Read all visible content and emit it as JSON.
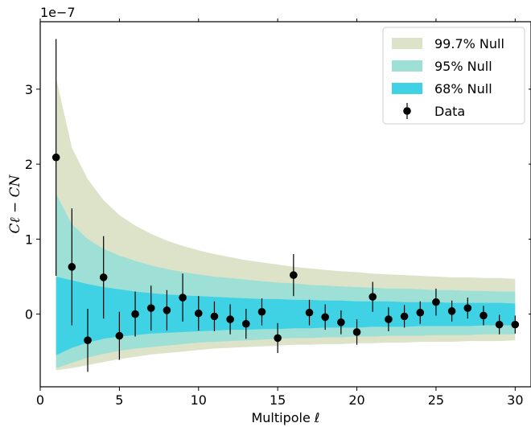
{
  "chart_data": {
    "type": "scatter",
    "xlabel": "Multipole ℓ",
    "ylabel": "Cℓ − CN",
    "offset_text": "1e−7",
    "xlim": [
      0,
      31
    ],
    "ylim": [
      -0.97,
      3.9
    ],
    "y_scale": 1e-07,
    "x_ticks": [
      0,
      5,
      10,
      15,
      20,
      25,
      30
    ],
    "y_ticks": [
      0,
      1,
      2,
      3
    ],
    "legend_position": "upper right",
    "grid": false,
    "bands": [
      {
        "name": "99.7% Null",
        "color": "#dde3c9",
        "x": [
          1,
          2,
          3,
          4,
          5,
          6,
          7,
          8,
          9,
          10,
          11,
          12,
          13,
          14,
          15,
          16,
          17,
          18,
          19,
          20,
          21,
          22,
          23,
          24,
          25,
          26,
          27,
          28,
          29,
          30
        ],
        "upper": [
          3.15,
          2.22,
          1.8,
          1.52,
          1.32,
          1.18,
          1.07,
          0.98,
          0.91,
          0.85,
          0.8,
          0.76,
          0.72,
          0.69,
          0.66,
          0.63,
          0.61,
          0.59,
          0.57,
          0.56,
          0.54,
          0.53,
          0.52,
          0.51,
          0.5,
          0.49,
          0.49,
          0.48,
          0.48,
          0.47
        ],
        "lower": [
          -0.75,
          -0.72,
          -0.68,
          -0.64,
          -0.6,
          -0.57,
          -0.54,
          -0.52,
          -0.5,
          -0.48,
          -0.46,
          -0.45,
          -0.44,
          -0.43,
          -0.42,
          -0.41,
          -0.41,
          -0.4,
          -0.4,
          -0.39,
          -0.39,
          -0.38,
          -0.38,
          -0.37,
          -0.37,
          -0.37,
          -0.36,
          -0.36,
          -0.36,
          -0.35
        ]
      },
      {
        "name": "95% Null",
        "color": "#9edfd6",
        "x": [
          1,
          2,
          3,
          4,
          5,
          6,
          7,
          8,
          9,
          10,
          11,
          12,
          13,
          14,
          15,
          16,
          17,
          18,
          19,
          20,
          21,
          22,
          23,
          24,
          25,
          26,
          27,
          28,
          29,
          30
        ],
        "upper": [
          1.6,
          1.2,
          1.0,
          0.87,
          0.78,
          0.71,
          0.65,
          0.6,
          0.56,
          0.53,
          0.5,
          0.48,
          0.46,
          0.44,
          0.42,
          0.41,
          0.39,
          0.38,
          0.37,
          0.36,
          0.35,
          0.34,
          0.34,
          0.33,
          0.32,
          0.32,
          0.31,
          0.31,
          0.3,
          0.3
        ],
        "lower": [
          -0.72,
          -0.65,
          -0.58,
          -0.53,
          -0.49,
          -0.46,
          -0.44,
          -0.42,
          -0.4,
          -0.38,
          -0.37,
          -0.36,
          -0.35,
          -0.34,
          -0.33,
          -0.32,
          -0.32,
          -0.31,
          -0.31,
          -0.3,
          -0.3,
          -0.29,
          -0.29,
          -0.29,
          -0.28,
          -0.28,
          -0.28,
          -0.27,
          -0.27,
          -0.27
        ]
      },
      {
        "name": "68% Null",
        "color": "#3fd2e5",
        "x": [
          1,
          2,
          3,
          4,
          5,
          6,
          7,
          8,
          9,
          10,
          11,
          12,
          13,
          14,
          15,
          16,
          17,
          18,
          19,
          20,
          21,
          22,
          23,
          24,
          25,
          26,
          27,
          28,
          29,
          30
        ],
        "upper": [
          0.5,
          0.45,
          0.4,
          0.36,
          0.33,
          0.3,
          0.28,
          0.26,
          0.25,
          0.24,
          0.23,
          0.22,
          0.21,
          0.2,
          0.2,
          0.19,
          0.19,
          0.18,
          0.18,
          0.17,
          0.17,
          0.17,
          0.16,
          0.16,
          0.16,
          0.15,
          0.15,
          0.15,
          0.15,
          0.14
        ],
        "lower": [
          -0.55,
          -0.45,
          -0.38,
          -0.33,
          -0.3,
          -0.28,
          -0.26,
          -0.25,
          -0.24,
          -0.23,
          -0.22,
          -0.21,
          -0.21,
          -0.2,
          -0.2,
          -0.19,
          -0.19,
          -0.18,
          -0.18,
          -0.18,
          -0.17,
          -0.17,
          -0.17,
          -0.16,
          -0.16,
          -0.16,
          -0.16,
          -0.15,
          -0.15,
          -0.15
        ]
      }
    ],
    "series": [
      {
        "name": "Data",
        "color": "#000000",
        "x": [
          1,
          2,
          3,
          4,
          5,
          6,
          7,
          8,
          9,
          10,
          11,
          12,
          13,
          14,
          15,
          16,
          17,
          18,
          19,
          20,
          21,
          22,
          23,
          24,
          25,
          26,
          27,
          28,
          29,
          30
        ],
        "y": [
          2.09,
          0.63,
          -0.35,
          0.49,
          -0.29,
          0.0,
          0.08,
          0.05,
          0.22,
          0.01,
          -0.03,
          -0.07,
          -0.13,
          0.03,
          -0.32,
          0.52,
          0.02,
          -0.04,
          -0.11,
          -0.24,
          0.23,
          -0.07,
          -0.03,
          0.02,
          0.16,
          0.04,
          0.08,
          -0.02,
          -0.14,
          -0.14
        ],
        "yerr": [
          1.58,
          0.78,
          0.42,
          0.55,
          0.32,
          0.3,
          0.3,
          0.27,
          0.32,
          0.23,
          0.2,
          0.2,
          0.2,
          0.18,
          0.2,
          0.28,
          0.17,
          0.17,
          0.16,
          0.17,
          0.2,
          0.16,
          0.15,
          0.15,
          0.18,
          0.14,
          0.14,
          0.13,
          0.13,
          0.12
        ]
      }
    ],
    "legend": [
      {
        "label": "99.7% Null",
        "kind": "patch",
        "color": "#dde3c9"
      },
      {
        "label": "95% Null",
        "kind": "patch",
        "color": "#9edfd6"
      },
      {
        "label": "68% Null",
        "kind": "patch",
        "color": "#3fd2e5"
      },
      {
        "label": "Data",
        "kind": "errorbar",
        "color": "#000000"
      }
    ]
  }
}
